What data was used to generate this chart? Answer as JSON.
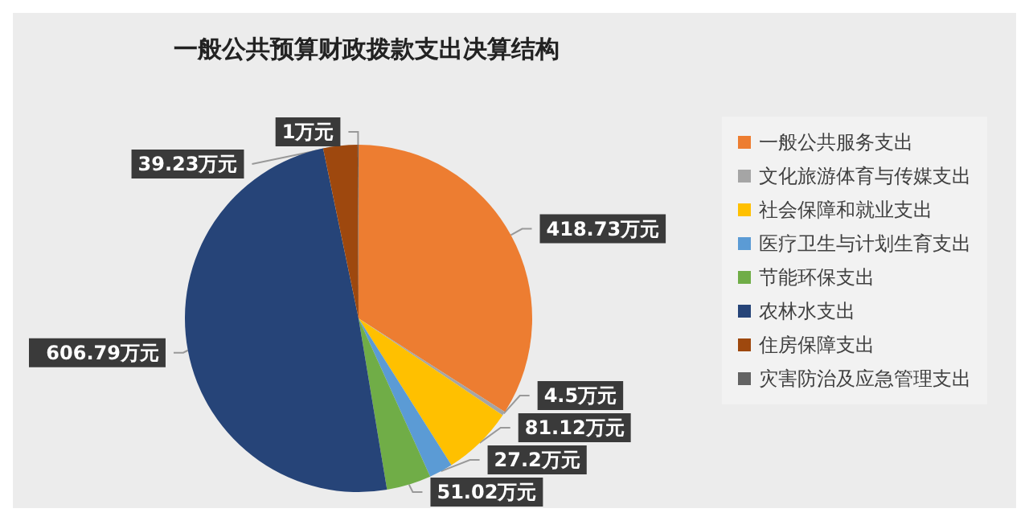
{
  "chart_data": {
    "type": "pie",
    "title": "一般公共预算财政拨款支出决算结构",
    "categories": [
      "一般公共服务支出",
      "文化旅游体育与传媒支出",
      "社会保障和就业支出",
      "医疗卫生与计划生育支出",
      "节能环保支出",
      "农林水支出",
      "住房保障支出",
      "灾害防治及应急管理支出"
    ],
    "values": [
      418.73,
      4.5,
      81.12,
      27.2,
      51.02,
      606.79,
      39.23,
      1
    ],
    "value_labels": [
      "418.73万元",
      "4.5万元",
      "81.12万元",
      "27.2万元",
      "51.02万元",
      "606.79万元",
      "39.23万元",
      "1万元"
    ],
    "colors": [
      "#ed7d31",
      "#a5a5a5",
      "#ffc000",
      "#5b9bd5",
      "#70ad47",
      "#264478",
      "#9e480e",
      "#636363"
    ],
    "legend": "right"
  }
}
